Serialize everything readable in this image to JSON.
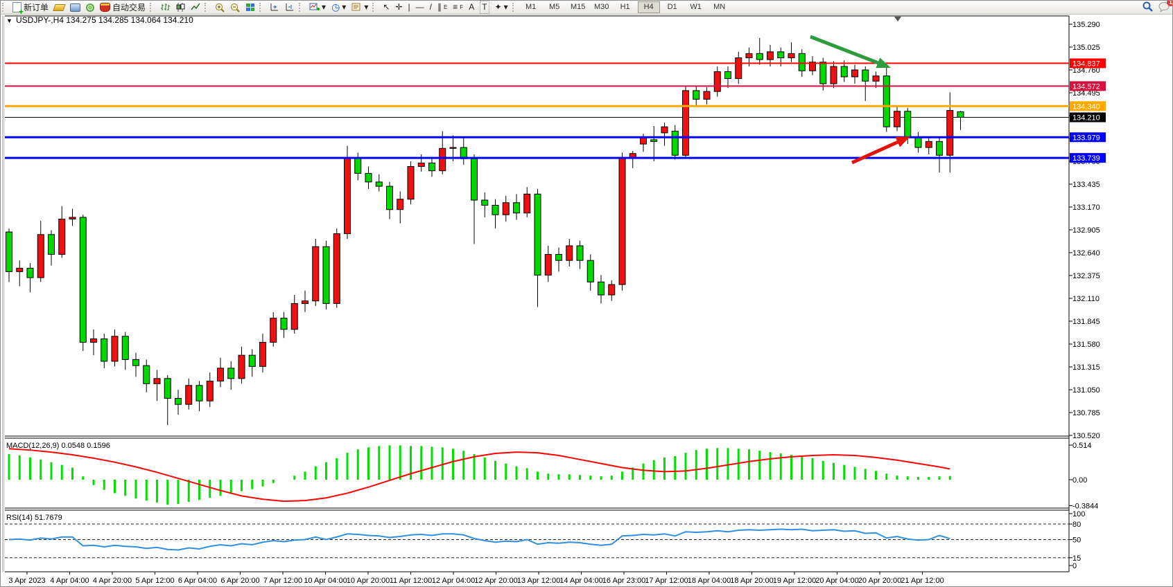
{
  "toolbar": {
    "new_order_label": "新订单",
    "auto_trading_label": "自动交易",
    "timeframes": [
      "M1",
      "M5",
      "M15",
      "M30",
      "H1",
      "H4",
      "D1",
      "W1",
      "MN"
    ],
    "active_timeframe": "H4",
    "notification_badge": "1",
    "tool_glyphs": {
      "cursor": "↖",
      "crosshair": "✛",
      "vline": "|",
      "hline": "—",
      "trendline": "/",
      "channel": "∥",
      "fibonacci": "≡",
      "text": "A",
      "label": "T",
      "shapes": "✦",
      "dropdown": "▾",
      "clock": "◷"
    }
  },
  "chart": {
    "collapse_marker": "▼",
    "header": "USDJPY-,H4  134.275 134.285 134.064 134.210",
    "macd_label": "MACD(12,26,9) 0.0548 0.1596",
    "rsi_label": "RSI(14) 51.7679"
  },
  "chart_data": {
    "type": "candlestick",
    "symbol": "USDJPY-",
    "timeframe": "H4",
    "current_bar": {
      "open": 134.275,
      "high": 134.285,
      "low": 134.064,
      "close": 134.21
    },
    "colors": {
      "bull_body": "#ee1111",
      "bear_body": "#00d800",
      "wick": "#000000",
      "macd_histogram": "#00e000",
      "macd_signal": "#ff0000",
      "rsi_line": "#2f8fe0"
    },
    "price_axis": {
      "top_price": 135.29,
      "bottom_price": 130.52,
      "tick_step": 0.265,
      "ticks": [
        135.29,
        135.025,
        134.76,
        134.495,
        134.23,
        133.965,
        133.7,
        133.435,
        133.17,
        132.905,
        132.64,
        132.375,
        132.11,
        131.845,
        131.58,
        131.315,
        131.05,
        130.785,
        130.52
      ]
    },
    "levels": [
      {
        "price": 134.837,
        "label": "134.837",
        "color": "#ff0000",
        "width": 2
      },
      {
        "price": 134.572,
        "label": "134.572",
        "color": "#d8103f",
        "width": 2
      },
      {
        "price": 134.34,
        "label": "134.340",
        "color": "#ffa800",
        "width": 3
      },
      {
        "price": 133.979,
        "label": "133.979",
        "color": "#0000ff",
        "width": 3
      },
      {
        "price": 133.739,
        "label": "133.739",
        "color": "#0000ff",
        "width": 3
      }
    ],
    "bid_line": {
      "price": 134.21,
      "label": "134.210",
      "color": "#000000",
      "width": 1
    },
    "ohlc": [
      [
        132.88,
        132.92,
        132.3,
        132.42
      ],
      [
        132.42,
        132.55,
        132.25,
        132.46
      ],
      [
        132.46,
        132.52,
        132.18,
        132.35
      ],
      [
        132.35,
        133.01,
        132.3,
        132.85
      ],
      [
        132.85,
        132.9,
        132.49,
        132.62
      ],
      [
        132.62,
        133.18,
        132.58,
        133.03
      ],
      [
        133.03,
        133.15,
        132.95,
        133.05
      ],
      [
        133.05,
        133.08,
        131.5,
        131.6
      ],
      [
        131.6,
        131.75,
        131.45,
        131.64
      ],
      [
        131.64,
        131.7,
        131.3,
        131.38
      ],
      [
        131.38,
        131.75,
        131.32,
        131.67
      ],
      [
        131.67,
        131.72,
        131.28,
        131.4
      ],
      [
        131.4,
        131.48,
        131.2,
        131.33
      ],
      [
        131.33,
        131.4,
        131.02,
        131.12
      ],
      [
        131.12,
        131.28,
        130.92,
        131.18
      ],
      [
        131.18,
        131.22,
        130.64,
        130.95
      ],
      [
        130.95,
        131.05,
        130.76,
        130.88
      ],
      [
        130.88,
        131.18,
        130.82,
        131.1
      ],
      [
        131.1,
        131.15,
        130.8,
        130.92
      ],
      [
        130.92,
        131.25,
        130.85,
        131.15
      ],
      [
        131.15,
        131.42,
        131.08,
        131.3
      ],
      [
        131.3,
        131.38,
        131.05,
        131.18
      ],
      [
        131.18,
        131.55,
        131.12,
        131.45
      ],
      [
        131.45,
        131.52,
        131.2,
        131.32
      ],
      [
        131.32,
        131.7,
        131.25,
        131.6
      ],
      [
        131.6,
        131.95,
        131.55,
        131.88
      ],
      [
        131.88,
        131.95,
        131.65,
        131.75
      ],
      [
        131.75,
        132.15,
        131.7,
        132.05
      ],
      [
        132.05,
        132.2,
        131.95,
        132.08
      ],
      [
        132.08,
        132.8,
        132.02,
        132.71
      ],
      [
        132.71,
        132.78,
        131.98,
        132.05
      ],
      [
        132.05,
        132.92,
        132.0,
        132.86
      ],
      [
        132.86,
        133.88,
        132.8,
        133.74
      ],
      [
        133.74,
        133.8,
        133.48,
        133.56
      ],
      [
        133.56,
        133.64,
        133.38,
        133.46
      ],
      [
        133.46,
        133.55,
        133.35,
        133.41
      ],
      [
        133.41,
        133.46,
        133.03,
        133.14
      ],
      [
        133.14,
        133.35,
        132.98,
        133.26
      ],
      [
        133.26,
        133.7,
        133.2,
        133.64
      ],
      [
        133.64,
        133.78,
        133.58,
        133.68
      ],
      [
        133.68,
        133.75,
        133.52,
        133.59
      ],
      [
        133.59,
        134.05,
        133.55,
        133.85
      ],
      [
        133.85,
        134.0,
        133.7,
        133.86
      ],
      [
        133.86,
        133.97,
        133.66,
        133.73
      ],
      [
        133.73,
        133.78,
        132.74,
        133.25
      ],
      [
        133.25,
        133.34,
        133.05,
        133.19
      ],
      [
        133.19,
        133.26,
        132.92,
        133.08
      ],
      [
        133.08,
        133.3,
        133.0,
        133.22
      ],
      [
        133.22,
        133.32,
        133.02,
        133.1
      ],
      [
        133.1,
        133.4,
        133.05,
        133.32
      ],
      [
        133.32,
        133.38,
        132.01,
        132.38
      ],
      [
        132.38,
        132.72,
        132.3,
        132.62
      ],
      [
        132.62,
        132.7,
        132.42,
        132.55
      ],
      [
        132.55,
        132.8,
        132.48,
        132.72
      ],
      [
        132.72,
        132.78,
        132.45,
        132.55
      ],
      [
        132.55,
        132.62,
        132.2,
        132.3
      ],
      [
        132.3,
        132.38,
        132.05,
        132.15
      ],
      [
        132.15,
        132.32,
        132.08,
        132.27
      ],
      [
        132.27,
        133.8,
        132.2,
        133.74
      ],
      [
        133.74,
        133.82,
        133.62,
        133.79
      ],
      [
        133.9,
        134.02,
        133.81,
        133.98
      ],
      [
        133.95,
        134.11,
        133.7,
        133.93
      ],
      [
        134.03,
        134.15,
        133.88,
        134.1
      ],
      [
        134.05,
        134.12,
        133.72,
        133.77
      ],
      [
        133.77,
        134.58,
        133.74,
        134.52
      ],
      [
        134.52,
        134.58,
        134.35,
        134.42
      ],
      [
        134.42,
        134.56,
        134.36,
        134.51
      ],
      [
        134.51,
        134.8,
        134.45,
        134.74
      ],
      [
        134.74,
        134.8,
        134.55,
        134.66
      ],
      [
        134.66,
        134.97,
        134.6,
        134.9
      ],
      [
        134.9,
        135.02,
        134.8,
        134.95
      ],
      [
        134.95,
        135.13,
        134.82,
        134.88
      ],
      [
        134.88,
        135.05,
        134.8,
        134.97
      ],
      [
        134.97,
        135.02,
        134.8,
        134.9
      ],
      [
        134.9,
        135.08,
        134.85,
        134.95
      ],
      [
        134.95,
        135.0,
        134.68,
        134.75
      ],
      [
        134.75,
        134.92,
        134.7,
        134.85
      ],
      [
        134.85,
        134.9,
        134.52,
        134.6
      ],
      [
        134.6,
        134.86,
        134.55,
        134.8
      ],
      [
        134.8,
        134.87,
        134.62,
        134.68
      ],
      [
        134.68,
        134.82,
        134.6,
        134.76
      ],
      [
        134.76,
        134.8,
        134.4,
        134.63
      ],
      [
        134.63,
        134.74,
        134.55,
        134.69
      ],
      [
        134.69,
        134.82,
        134.04,
        134.1
      ],
      [
        134.1,
        134.35,
        134.05,
        134.28
      ],
      [
        134.28,
        134.32,
        133.9,
        133.98
      ],
      [
        133.98,
        134.04,
        133.8,
        133.86
      ],
      [
        133.86,
        133.97,
        133.78,
        133.93
      ],
      [
        133.93,
        133.97,
        133.57,
        133.77
      ],
      [
        133.77,
        134.5,
        133.57,
        134.29
      ],
      [
        134.275,
        134.285,
        134.064,
        134.21
      ]
    ],
    "time_labels": [
      "3 Apr 2023",
      "4 Apr 04:00",
      "4 Apr 20:00",
      "5 Apr 12:00",
      "6 Apr 04:00",
      "6 Apr 20:00",
      "7 Apr 12:00",
      "10 Apr 04:00",
      "10 Apr 20:00",
      "11 Apr 12:00",
      "12 Apr 04:00",
      "12 Apr 20:00",
      "13 Apr 12:00",
      "14 Apr 04:00",
      "16 Apr 23:00",
      "17 Apr 12:00",
      "18 Apr 04:00",
      "18 Apr 20:00",
      "19 Apr 12:00",
      "20 Apr 04:00",
      "20 Apr 20:00",
      "21 Apr 12:00"
    ],
    "macd": {
      "name": "MACD(12,26,9)",
      "value_main": 0.0548,
      "value_signal": 0.1596,
      "axis_ticks": [
        "0.514",
        "0.00",
        "-0.3844"
      ],
      "axis_values": [
        0.514,
        0.0,
        -0.3844
      ],
      "histogram": [
        0.38,
        0.36,
        0.33,
        0.3,
        0.26,
        0.22,
        0.18,
        0.05,
        -0.08,
        -0.15,
        -0.2,
        -0.24,
        -0.28,
        -0.31,
        -0.34,
        -0.37,
        -0.36,
        -0.33,
        -0.3,
        -0.27,
        -0.24,
        -0.21,
        -0.17,
        -0.14,
        -0.1,
        -0.05,
        0.0,
        0.06,
        0.12,
        0.2,
        0.26,
        0.32,
        0.4,
        0.45,
        0.48,
        0.5,
        0.51,
        0.51,
        0.5,
        0.5,
        0.49,
        0.48,
        0.46,
        0.43,
        0.38,
        0.33,
        0.28,
        0.24,
        0.2,
        0.17,
        0.12,
        0.09,
        0.08,
        0.08,
        0.07,
        0.06,
        0.05,
        0.06,
        0.12,
        0.18,
        0.24,
        0.29,
        0.33,
        0.35,
        0.4,
        0.44,
        0.46,
        0.47,
        0.47,
        0.46,
        0.45,
        0.43,
        0.41,
        0.39,
        0.37,
        0.35,
        0.32,
        0.28,
        0.25,
        0.22,
        0.19,
        0.16,
        0.13,
        0.09,
        0.06,
        0.05,
        0.04,
        0.04,
        0.05,
        0.0548
      ],
      "signal_points": [
        [
          0,
          0.46
        ],
        [
          2,
          0.44
        ],
        [
          4,
          0.41
        ],
        [
          6,
          0.37
        ],
        [
          8,
          0.32
        ],
        [
          10,
          0.26
        ],
        [
          12,
          0.19
        ],
        [
          14,
          0.11
        ],
        [
          16,
          0.02
        ],
        [
          18,
          -0.07
        ],
        [
          20,
          -0.16
        ],
        [
          22,
          -0.24
        ],
        [
          24,
          -0.29
        ],
        [
          26,
          -0.32
        ],
        [
          28,
          -0.31
        ],
        [
          30,
          -0.27
        ],
        [
          32,
          -0.2
        ],
        [
          34,
          -0.11
        ],
        [
          36,
          -0.01
        ],
        [
          38,
          0.09
        ],
        [
          40,
          0.18
        ],
        [
          42,
          0.27
        ],
        [
          44,
          0.34
        ],
        [
          46,
          0.39
        ],
        [
          48,
          0.41
        ],
        [
          50,
          0.4
        ],
        [
          52,
          0.36
        ],
        [
          54,
          0.3
        ],
        [
          56,
          0.24
        ],
        [
          58,
          0.18
        ],
        [
          60,
          0.14
        ],
        [
          62,
          0.12
        ],
        [
          64,
          0.13
        ],
        [
          66,
          0.17
        ],
        [
          68,
          0.22
        ],
        [
          70,
          0.27
        ],
        [
          72,
          0.31
        ],
        [
          74,
          0.34
        ],
        [
          76,
          0.36
        ],
        [
          78,
          0.37
        ],
        [
          80,
          0.36
        ],
        [
          82,
          0.33
        ],
        [
          84,
          0.29
        ],
        [
          86,
          0.24
        ],
        [
          88,
          0.19
        ],
        [
          89,
          0.1596
        ]
      ]
    },
    "rsi": {
      "name": "RSI(14)",
      "value": 51.7679,
      "axis_ticks": [
        "100",
        "80",
        "50",
        "15",
        "0"
      ],
      "axis_values": [
        100,
        80,
        50,
        15,
        0
      ],
      "dashed_levels": [
        80,
        50,
        15
      ],
      "series": [
        50,
        51,
        49,
        53,
        51,
        55,
        55,
        38,
        39,
        36,
        39,
        37,
        36,
        33,
        35,
        31,
        30,
        34,
        32,
        37,
        40,
        38,
        42,
        40,
        45,
        48,
        46,
        49,
        50,
        55,
        50,
        55,
        61,
        60,
        58,
        57,
        54,
        56,
        59,
        60,
        58,
        61,
        61,
        59,
        52,
        48,
        45,
        47,
        46,
        50,
        41,
        44,
        43,
        45,
        44,
        41,
        39,
        41,
        57,
        58,
        60,
        59,
        61,
        57,
        65,
        64,
        65,
        67,
        65,
        68,
        69,
        68,
        69,
        70,
        69,
        70,
        67,
        68,
        69,
        66,
        67,
        62,
        63,
        53,
        56,
        51,
        49,
        50,
        58,
        51.8
      ]
    },
    "annotations": [
      {
        "type": "arrow",
        "name": "green-down-arrow",
        "color": "#2e9b3e",
        "from": [
          1168,
          52
        ],
        "to": [
          1284,
          97
        ]
      },
      {
        "type": "arrow",
        "name": "red-up-arrow",
        "color": "#e3120b",
        "from": [
          1228,
          234
        ],
        "to": [
          1312,
          196
        ]
      }
    ],
    "shift_marker_x": 1294
  }
}
